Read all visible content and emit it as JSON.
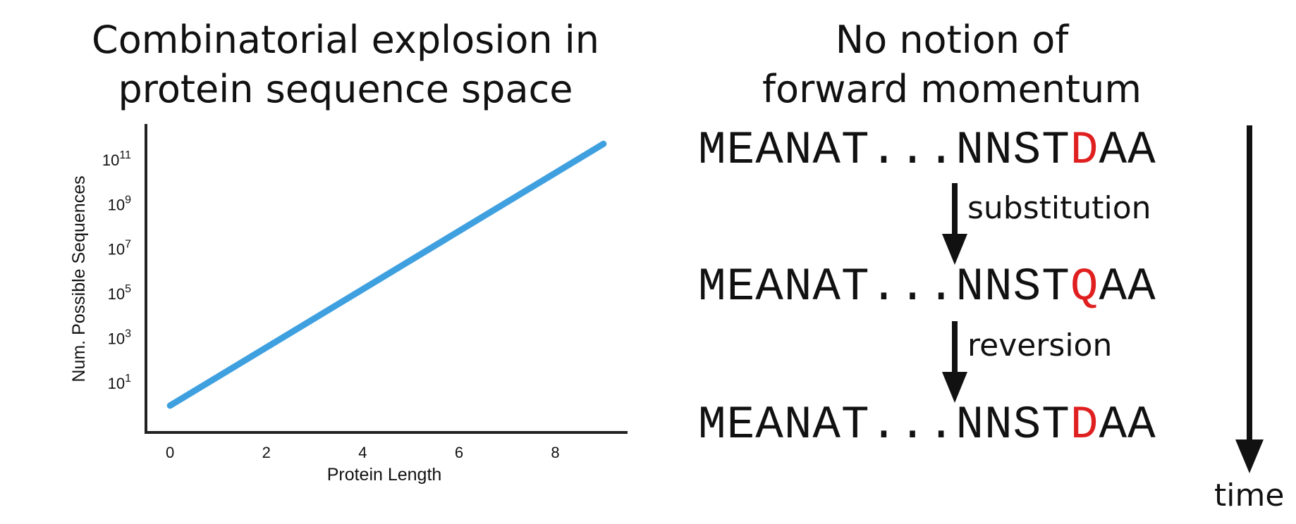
{
  "left_panel": {
    "title_line1": "Combinatorial explosion in",
    "title_line2": "protein sequence space"
  },
  "right_panel": {
    "title_line1": "No notion of",
    "title_line2": "forward momentum",
    "sequences": [
      {
        "prefix": "MEANAT...NNST",
        "mutated": "D",
        "suffix": "AA"
      },
      {
        "prefix": "MEANAT...NNST",
        "mutated": "Q",
        "suffix": "AA"
      },
      {
        "prefix": "MEANAT...NNST",
        "mutated": "D",
        "suffix": "AA"
      }
    ],
    "steps": [
      "substitution",
      "reversion"
    ],
    "time_label": "time",
    "colors": {
      "mutation": "#e02020",
      "text": "#111111"
    }
  },
  "chart_data": {
    "type": "line",
    "xlabel": "Protein Length",
    "ylabel": "Num. Possible Sequences",
    "yscale": "log",
    "xlim": [
      -0.5,
      9.5
    ],
    "x_ticks": [
      0,
      2,
      4,
      6,
      8
    ],
    "y_tick_exponents": [
      1,
      3,
      5,
      7,
      9,
      11
    ],
    "y_tick_base": "10",
    "log10_ylim": [
      -1.2,
      12.6
    ],
    "series": [
      {
        "x": [
          0,
          9
        ],
        "y": [
          1,
          512000000000
        ],
        "color": "#3fa0e0"
      }
    ],
    "grid": false
  }
}
